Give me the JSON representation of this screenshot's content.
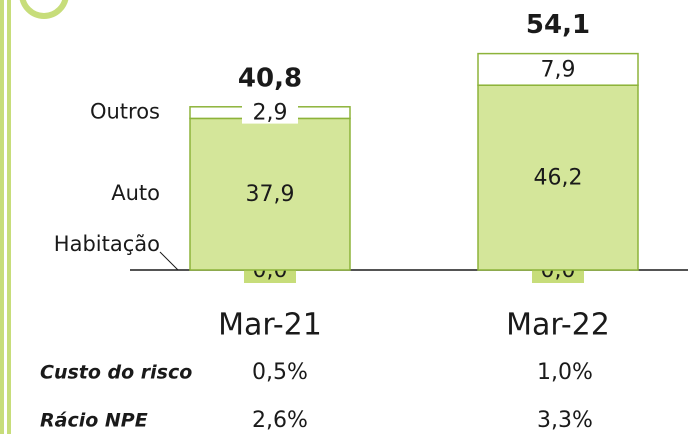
{
  "chart_data": {
    "type": "stacked_bar",
    "categories": [
      "Mar-21",
      "Mar-22"
    ],
    "series": [
      {
        "name": "Habitação",
        "color": "#d4e69a",
        "values": [
          0.0,
          0.0
        ],
        "value_labels": [
          "0,0",
          "0,0"
        ]
      },
      {
        "name": "Auto",
        "color": "#d4e69a",
        "values": [
          37.9,
          46.2
        ],
        "value_labels": [
          "37,9",
          "46,2"
        ]
      },
      {
        "name": "Outros",
        "color": "#ffffff",
        "values": [
          2.9,
          7.9
        ],
        "value_labels": [
          "2,9",
          "7,9"
        ]
      }
    ],
    "totals": [
      40.8,
      54.1
    ],
    "total_labels": [
      "40,8",
      "54,1"
    ],
    "table": {
      "rows": [
        {
          "label": "Custo do risco",
          "values": [
            "0,5%",
            "1,0%"
          ]
        },
        {
          "label": "Rácio NPE",
          "values": [
            "2,6%",
            "3,3%"
          ]
        }
      ]
    }
  }
}
